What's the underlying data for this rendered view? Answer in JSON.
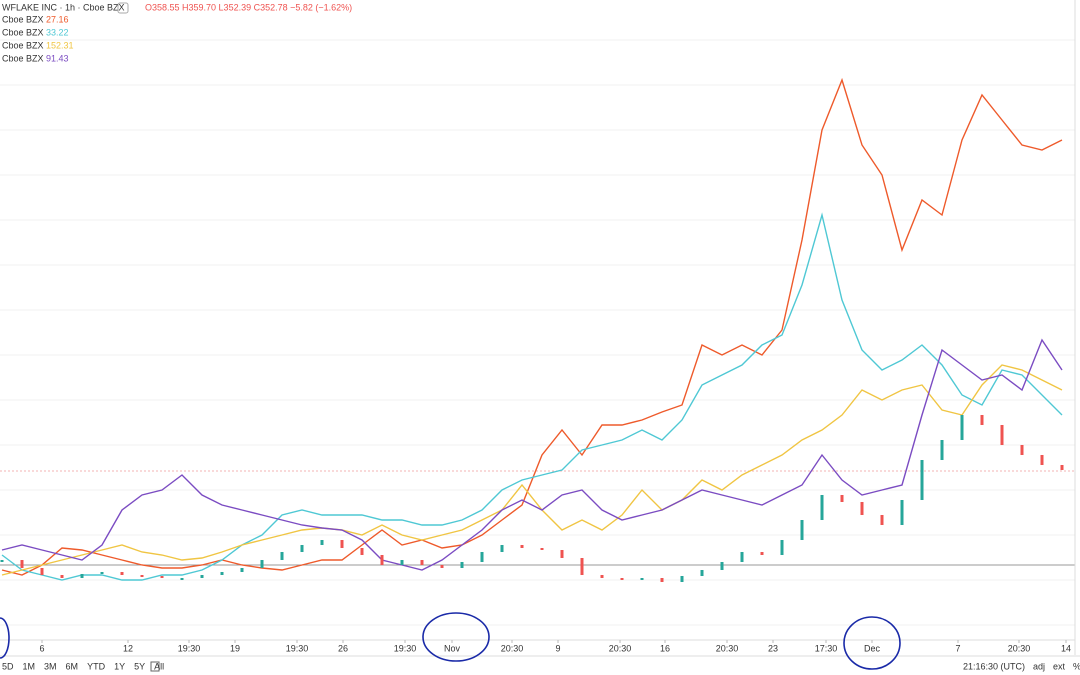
{
  "chart_data": {
    "type": "line",
    "title": "WFLAKE INC · 1h · Cboe BZX",
    "ohlc": "O358.55 H359.70 L352.39 C352.78 −5.82 (−1.62%)",
    "x": [
      0,
      1,
      2,
      3,
      4,
      5,
      6,
      7,
      8,
      9,
      10,
      11,
      12,
      13,
      14,
      15,
      16,
      17,
      18,
      19,
      20,
      21,
      22,
      23,
      24,
      25,
      26,
      27,
      28,
      29,
      30,
      31,
      32,
      33,
      34,
      35,
      36,
      37,
      38,
      39,
      40,
      41,
      42,
      43,
      44,
      45,
      46,
      47,
      48,
      49,
      50,
      51,
      52,
      53
    ],
    "xlim": [
      0,
      53.5
    ],
    "ylim": [
      0,
      640
    ],
    "xticks": [
      {
        "value": 2,
        "label": "6"
      },
      {
        "value": 6.3,
        "label": "12"
      },
      {
        "value": 9.35,
        "label": "19:30"
      },
      {
        "value": 11.65,
        "label": "19"
      },
      {
        "value": 14.75,
        "label": "19:30"
      },
      {
        "value": 17.05,
        "label": "26"
      },
      {
        "value": 20.15,
        "label": "19:30"
      },
      {
        "value": 22.5,
        "label": "Nov"
      },
      {
        "value": 25.5,
        "label": "20:30"
      },
      {
        "value": 27.8,
        "label": "9"
      },
      {
        "value": 30.9,
        "label": "20:30"
      },
      {
        "value": 33.15,
        "label": "16"
      },
      {
        "value": 36.25,
        "label": "20:30"
      },
      {
        "value": 38.55,
        "label": "23"
      },
      {
        "value": 41.2,
        "label": "17:30"
      },
      {
        "value": 43.5,
        "label": "Dec"
      },
      {
        "value": 47.8,
        "label": "7"
      },
      {
        "value": 50.85,
        "label": "20:30"
      },
      {
        "value": 53.2,
        "label": "14"
      }
    ],
    "main": {
      "color_up": "#26a69a",
      "color_down": "#ef5350",
      "values": [
        80,
        72,
        65,
        62,
        66,
        68,
        65,
        64,
        62,
        62,
        65,
        68,
        72,
        80,
        88,
        95,
        100,
        92,
        85,
        75,
        80,
        75,
        72,
        78,
        88,
        95,
        92,
        90,
        82,
        65,
        62,
        60,
        62,
        58,
        64,
        70,
        78,
        88,
        85,
        100,
        120,
        145,
        138,
        125,
        115,
        140,
        180,
        200,
        225,
        215,
        195,
        185,
        175,
        170
      ]
    },
    "series": [
      {
        "name": "Cboe BZX",
        "legend_value": "27.16",
        "color": "#ee5a2b",
        "values": [
          70,
          65,
          75,
          92,
          90,
          85,
          80,
          75,
          72,
          72,
          75,
          80,
          75,
          72,
          70,
          75,
          80,
          80,
          95,
          110,
          95,
          100,
          92,
          95,
          105,
          120,
          135,
          185,
          210,
          185,
          215,
          215,
          220,
          228,
          235,
          295,
          285,
          295,
          285,
          310,
          400,
          510,
          560,
          495,
          465,
          390,
          440,
          425,
          500,
          545,
          520,
          495,
          490,
          500
        ]
      },
      {
        "name": "Cboe BZX",
        "legend_value": "33.22",
        "color": "#4fc8d4",
        "values": [
          85,
          70,
          65,
          60,
          65,
          65,
          60,
          60,
          65,
          65,
          70,
          80,
          95,
          105,
          125,
          130,
          125,
          125,
          125,
          120,
          120,
          115,
          115,
          120,
          130,
          150,
          160,
          165,
          170,
          190,
          195,
          200,
          210,
          200,
          220,
          255,
          265,
          275,
          295,
          305,
          355,
          425,
          340,
          290,
          270,
          280,
          295,
          275,
          245,
          235,
          270,
          265,
          245,
          225
        ]
      },
      {
        "name": "Cboe BZX",
        "legend_value": "152.31",
        "color": "#f0c543",
        "values": [
          65,
          70,
          75,
          80,
          85,
          90,
          95,
          88,
          85,
          80,
          82,
          88,
          95,
          100,
          105,
          110,
          112,
          110,
          105,
          115,
          105,
          100,
          105,
          110,
          120,
          130,
          155,
          130,
          110,
          120,
          110,
          125,
          150,
          130,
          140,
          160,
          150,
          165,
          175,
          185,
          200,
          210,
          225,
          250,
          240,
          250,
          255,
          230,
          225,
          255,
          275,
          270,
          260,
          250
        ]
      },
      {
        "name": "Cboe BZX",
        "legend_value": "91.43",
        "color": "#7b4cc2",
        "values": [
          90,
          95,
          90,
          85,
          80,
          95,
          130,
          145,
          150,
          165,
          145,
          135,
          130,
          125,
          120,
          115,
          112,
          110,
          100,
          80,
          75,
          70,
          80,
          95,
          110,
          130,
          140,
          130,
          145,
          150,
          130,
          120,
          125,
          130,
          140,
          150,
          145,
          140,
          135,
          145,
          155,
          185,
          160,
          145,
          150,
          155,
          225,
          290,
          275,
          260,
          265,
          250,
          300,
          270
        ]
      }
    ],
    "toolbar": [
      "5D",
      "1M",
      "3M",
      "6M",
      "YTD",
      "1Y",
      "5Y",
      "All"
    ],
    "clock": "21:16:30 (UTC)",
    "options": [
      "adj",
      "ext",
      "%"
    ]
  }
}
